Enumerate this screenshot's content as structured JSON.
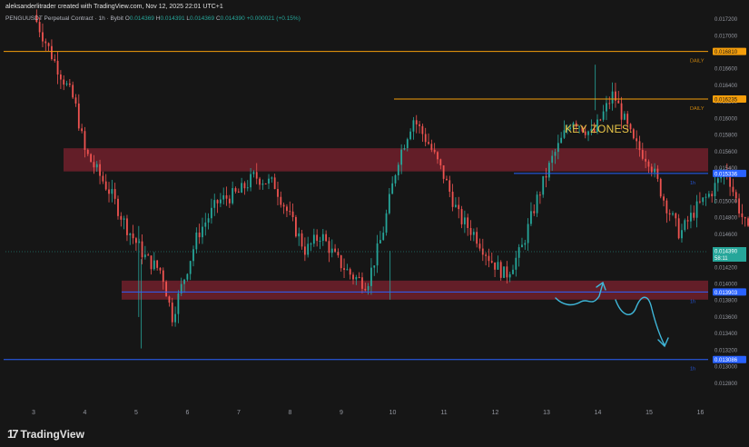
{
  "header": {
    "credit": "aleksanderlitrader created with TradingView.com, Nov 12, 2025 22:01 UTC+1",
    "symbol_line": "PENGUUSDT Perpetual Contract · 1h · Bybit",
    "o_label": "O",
    "o_value": "0.014369",
    "h_label": "H",
    "h_value": "0.014391",
    "l_label": "L",
    "l_value": "0.014369",
    "c_label": "C",
    "c_value": "0.014390",
    "change": "+0.000021 (+0.15%)"
  },
  "annotation": "KEY ZONES.",
  "footer": {
    "logo_mark": "17",
    "logo_text": "TradingView"
  },
  "colors": {
    "up": "#26a69a",
    "down": "#ef5350",
    "orange": "#f59e0b",
    "blue": "#2962ff",
    "zone": "#6b1f2a",
    "arrow": "#3fb7d9"
  },
  "chart_data": {
    "type": "candlestick",
    "title": "PENGUUSDT Perpetual Contract · 1h · Bybit",
    "x_ticks": [
      "3",
      "4",
      "5",
      "6",
      "7",
      "8",
      "9",
      "10",
      "11",
      "12",
      "13",
      "14",
      "15",
      "16"
    ],
    "y_ticks": [
      "0.017200",
      "0.017000",
      "0.016600",
      "0.016400",
      "0.016200",
      "0.016000",
      "0.015800",
      "0.015600",
      "0.015400",
      "0.015000",
      "0.014800",
      "0.014600",
      "0.014200",
      "0.014000",
      "0.013800",
      "0.013600",
      "0.013400",
      "0.013200",
      "0.013000",
      "0.012800"
    ],
    "ylim": [
      0.0126,
      0.0173
    ],
    "current_price": "0.014390",
    "countdown": "58:11",
    "levels": [
      {
        "price": 0.01681,
        "label": "0.016810",
        "tag": "DAILY",
        "color": "orange"
      },
      {
        "price": 0.016235,
        "label": "0.016235",
        "tag": "DAILY",
        "color": "orange"
      },
      {
        "price": 0.015336,
        "label": "0.015336",
        "tag": "1h",
        "color": "blue"
      },
      {
        "price": 0.013903,
        "label": "0.013903",
        "tag": "1h",
        "color": "blue"
      },
      {
        "price": 0.013086,
        "label": "0.013086",
        "tag": "1h",
        "color": "blue"
      }
    ],
    "zones": [
      {
        "low": 0.01536,
        "high": 0.01564
      },
      {
        "low": 0.01381,
        "high": 0.01404
      }
    ],
    "path": [
      [
        0,
        0.01725
      ],
      [
        0.4,
        0.0167
      ],
      [
        0.8,
        0.0162
      ],
      [
        1.0,
        0.0156
      ],
      [
        1.5,
        0.0151
      ],
      [
        1.8,
        0.0147
      ],
      [
        2.2,
        0.0143
      ],
      [
        2.5,
        0.01415
      ],
      [
        2.7,
        0.0136
      ],
      [
        2.9,
        0.014
      ],
      [
        3.2,
        0.0146
      ],
      [
        3.6,
        0.015
      ],
      [
        4.0,
        0.0151
      ],
      [
        4.3,
        0.0153
      ],
      [
        4.7,
        0.0152
      ],
      [
        5.0,
        0.0148
      ],
      [
        5.3,
        0.0144
      ],
      [
        5.6,
        0.0146
      ],
      [
        5.9,
        0.0143
      ],
      [
        6.2,
        0.0141
      ],
      [
        6.5,
        0.014
      ],
      [
        6.8,
        0.0146
      ],
      [
        7.1,
        0.0155
      ],
      [
        7.4,
        0.016
      ],
      [
        7.7,
        0.0157
      ],
      [
        8.0,
        0.0153
      ],
      [
        8.3,
        0.0148
      ],
      [
        8.6,
        0.0146
      ],
      [
        8.9,
        0.0143
      ],
      [
        9.2,
        0.0141
      ],
      [
        9.5,
        0.0144
      ],
      [
        9.8,
        0.015
      ],
      [
        10.1,
        0.0155
      ],
      [
        10.5,
        0.016
      ],
      [
        10.9,
        0.0158
      ],
      [
        11.3,
        0.0163
      ],
      [
        11.7,
        0.0157
      ],
      [
        12.0,
        0.0155
      ],
      [
        12.3,
        0.015
      ],
      [
        12.6,
        0.0146
      ],
      [
        12.9,
        0.0149
      ],
      [
        13.2,
        0.0151
      ],
      [
        13.5,
        0.0154
      ],
      [
        13.7,
        0.015
      ],
      [
        14.0,
        0.0145
      ],
      [
        14.2,
        0.0141
      ],
      [
        14.4,
        0.0144
      ]
    ]
  }
}
